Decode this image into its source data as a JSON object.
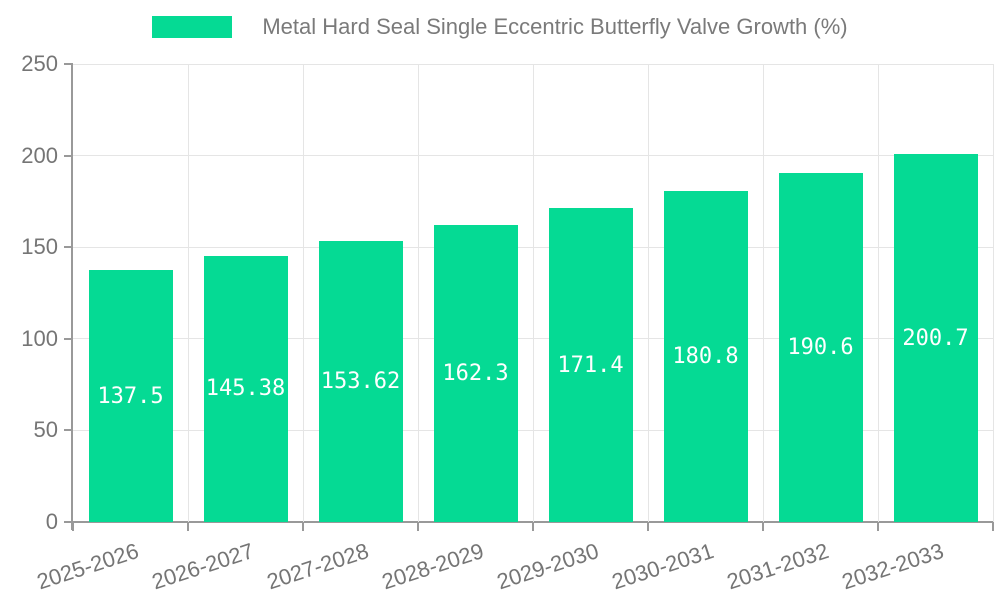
{
  "chart_data": {
    "type": "bar",
    "title": "Metal Hard Seal Single Eccentric Butterfly Valve Growth (%)",
    "categories": [
      "2025-2026",
      "2026-2027",
      "2027-2028",
      "2028-2029",
      "2029-2030",
      "2030-2031",
      "2031-2032",
      "2032-2033"
    ],
    "values": [
      137.5,
      145.38,
      153.62,
      162.3,
      171.4,
      180.8,
      190.6,
      200.7
    ],
    "value_labels": [
      "137.5",
      "145.38",
      "153.62",
      "162.3",
      "171.4",
      "180.8",
      "190.6",
      "200.7"
    ],
    "xlabel": "",
    "ylabel": "",
    "ylim": [
      0,
      250
    ],
    "yticks": [
      0,
      50,
      100,
      150,
      200,
      250
    ],
    "grid": true,
    "legend_position": "top-center",
    "x_label_rotation_deg": -18,
    "colors": {
      "bar": "#05da94",
      "grid_line": "#e5e5e5",
      "axis_line": "#999999",
      "tick_label": "#757575",
      "title_text": "#7a7a7a",
      "value_label": "#ffffff",
      "background": "#ffffff"
    }
  }
}
